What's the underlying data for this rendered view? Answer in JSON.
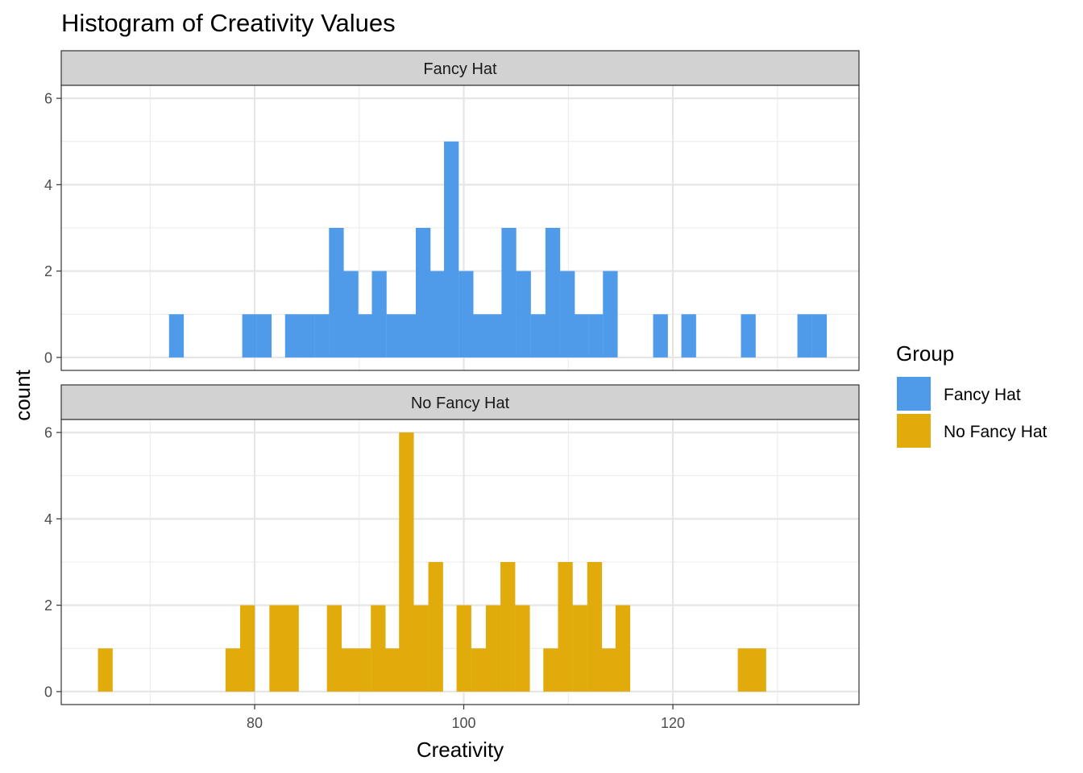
{
  "chart_data": {
    "type": "bar",
    "title": "Histogram of Creativity Values",
    "xlabel": "Creativity",
    "ylabel": "count",
    "xlim": [
      61.5,
      137.8
    ],
    "ylim": [
      -0.3,
      6.3
    ],
    "x_ticks": [
      80,
      100,
      120
    ],
    "y_ticks": [
      0,
      2,
      4,
      6
    ],
    "bin_width": 1.38,
    "grid": true,
    "legend": {
      "title": "Group",
      "position": "right",
      "entries": [
        {
          "label": "Fancy Hat",
          "color": "#4f9bea"
        },
        {
          "label": "No Fancy Hat",
          "color": "#e0ab0b"
        }
      ]
    },
    "panels": [
      {
        "strip": "Fancy Hat",
        "color": "#4f9bea",
        "bins": [
          {
            "x": 72.5,
            "count": 1
          },
          {
            "x": 79.5,
            "count": 1
          },
          {
            "x": 80.9,
            "count": 1
          },
          {
            "x": 83.6,
            "count": 1
          },
          {
            "x": 85.0,
            "count": 1
          },
          {
            "x": 86.4,
            "count": 1
          },
          {
            "x": 87.8,
            "count": 3
          },
          {
            "x": 89.2,
            "count": 2
          },
          {
            "x": 90.5,
            "count": 1
          },
          {
            "x": 91.9,
            "count": 2
          },
          {
            "x": 93.3,
            "count": 1
          },
          {
            "x": 94.7,
            "count": 1
          },
          {
            "x": 96.1,
            "count": 3
          },
          {
            "x": 97.4,
            "count": 2
          },
          {
            "x": 98.8,
            "count": 5
          },
          {
            "x": 100.2,
            "count": 2
          },
          {
            "x": 101.6,
            "count": 1
          },
          {
            "x": 103.0,
            "count": 1
          },
          {
            "x": 104.3,
            "count": 3
          },
          {
            "x": 105.7,
            "count": 2
          },
          {
            "x": 107.1,
            "count": 1
          },
          {
            "x": 108.5,
            "count": 3
          },
          {
            "x": 109.9,
            "count": 2
          },
          {
            "x": 111.2,
            "count": 1
          },
          {
            "x": 112.6,
            "count": 1
          },
          {
            "x": 114.0,
            "count": 2
          },
          {
            "x": 118.8,
            "count": 1
          },
          {
            "x": 121.5,
            "count": 1
          },
          {
            "x": 127.2,
            "count": 1
          },
          {
            "x": 132.6,
            "count": 1
          },
          {
            "x": 134.0,
            "count": 1
          }
        ]
      },
      {
        "strip": "No Fancy Hat",
        "color": "#e0ab0b",
        "bins": [
          {
            "x": 65.7,
            "count": 1
          },
          {
            "x": 77.9,
            "count": 1
          },
          {
            "x": 79.3,
            "count": 2
          },
          {
            "x": 82.1,
            "count": 2
          },
          {
            "x": 83.5,
            "count": 2
          },
          {
            "x": 87.6,
            "count": 2
          },
          {
            "x": 89.0,
            "count": 1
          },
          {
            "x": 90.4,
            "count": 1
          },
          {
            "x": 91.8,
            "count": 2
          },
          {
            "x": 93.2,
            "count": 1
          },
          {
            "x": 94.5,
            "count": 6
          },
          {
            "x": 95.9,
            "count": 2
          },
          {
            "x": 97.3,
            "count": 3
          },
          {
            "x": 100.0,
            "count": 2
          },
          {
            "x": 101.4,
            "count": 1
          },
          {
            "x": 102.8,
            "count": 2
          },
          {
            "x": 104.2,
            "count": 3
          },
          {
            "x": 105.6,
            "count": 2
          },
          {
            "x": 108.3,
            "count": 1
          },
          {
            "x": 109.7,
            "count": 3
          },
          {
            "x": 111.1,
            "count": 2
          },
          {
            "x": 112.5,
            "count": 3
          },
          {
            "x": 113.9,
            "count": 1
          },
          {
            "x": 115.2,
            "count": 2
          },
          {
            "x": 126.9,
            "count": 1
          },
          {
            "x": 128.2,
            "count": 1
          }
        ]
      }
    ]
  }
}
